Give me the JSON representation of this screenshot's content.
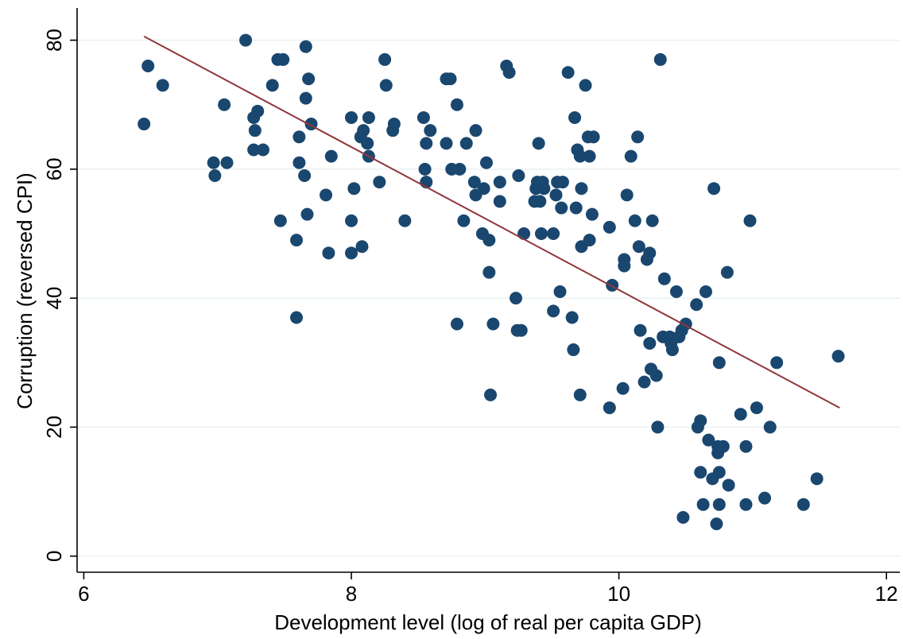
{
  "chart_data": {
    "type": "scatter",
    "xlabel": "Development level (log of real per capita GDP)",
    "ylabel": "Corruption (reversed CPI)",
    "xlim": [
      5.95,
      12.1
    ],
    "ylim": [
      -2.5,
      85
    ],
    "xticks": [
      6,
      8,
      10,
      12
    ],
    "yticks": [
      0,
      20,
      40,
      60,
      80
    ],
    "grid": "horizontal",
    "colors": {
      "points": "#1a476f",
      "fit_line": "#90353b",
      "grid": "#eaf2f3"
    },
    "fit_line": {
      "x": [
        6.45,
        11.65
      ],
      "y": [
        80.6,
        23.0
      ]
    },
    "points": [
      [
        6.45,
        67
      ],
      [
        6.48,
        76
      ],
      [
        6.59,
        73
      ],
      [
        6.97,
        61
      ],
      [
        6.98,
        59
      ],
      [
        7.05,
        70
      ],
      [
        7.07,
        61
      ],
      [
        7.21,
        80
      ],
      [
        7.27,
        68
      ],
      [
        7.28,
        66
      ],
      [
        7.27,
        63
      ],
      [
        7.3,
        69
      ],
      [
        7.34,
        63
      ],
      [
        7.41,
        73
      ],
      [
        7.45,
        77
      ],
      [
        7.49,
        77
      ],
      [
        7.47,
        52
      ],
      [
        7.59,
        49
      ],
      [
        7.59,
        37
      ],
      [
        7.61,
        65
      ],
      [
        7.61,
        61
      ],
      [
        7.65,
        59
      ],
      [
        7.66,
        79
      ],
      [
        7.66,
        71
      ],
      [
        7.68,
        74
      ],
      [
        7.67,
        53
      ],
      [
        7.7,
        67
      ],
      [
        7.81,
        56
      ],
      [
        7.83,
        47
      ],
      [
        7.85,
        62
      ],
      [
        8.0,
        68
      ],
      [
        8.0,
        52
      ],
      [
        8.0,
        47
      ],
      [
        8.02,
        57
      ],
      [
        8.07,
        65
      ],
      [
        8.08,
        48
      ],
      [
        8.09,
        66
      ],
      [
        8.12,
        64
      ],
      [
        8.13,
        62
      ],
      [
        8.13,
        68
      ],
      [
        8.21,
        58
      ],
      [
        8.25,
        77
      ],
      [
        8.26,
        73
      ],
      [
        8.31,
        66
      ],
      [
        8.32,
        67
      ],
      [
        8.4,
        52
      ],
      [
        8.54,
        68
      ],
      [
        8.55,
        60
      ],
      [
        8.56,
        64
      ],
      [
        8.56,
        58
      ],
      [
        8.59,
        66
      ],
      [
        8.71,
        64
      ],
      [
        8.71,
        74
      ],
      [
        8.74,
        74
      ],
      [
        8.75,
        60
      ],
      [
        8.79,
        70
      ],
      [
        8.79,
        36
      ],
      [
        8.81,
        60
      ],
      [
        8.84,
        52
      ],
      [
        8.86,
        64
      ],
      [
        8.92,
        58
      ],
      [
        8.93,
        66
      ],
      [
        8.93,
        56
      ],
      [
        8.99,
        57
      ],
      [
        8.98,
        50
      ],
      [
        9.01,
        61
      ],
      [
        9.03,
        49
      ],
      [
        9.03,
        44
      ],
      [
        9.04,
        25
      ],
      [
        9.06,
        36
      ],
      [
        9.11,
        58
      ],
      [
        9.11,
        55
      ],
      [
        9.16,
        76
      ],
      [
        9.18,
        75
      ],
      [
        9.23,
        40
      ],
      [
        9.24,
        35
      ],
      [
        9.25,
        59
      ],
      [
        9.27,
        35
      ],
      [
        9.29,
        50
      ],
      [
        9.37,
        55
      ],
      [
        9.38,
        57
      ],
      [
        9.39,
        58
      ],
      [
        9.4,
        64
      ],
      [
        9.41,
        55
      ],
      [
        9.42,
        50
      ],
      [
        9.43,
        58
      ],
      [
        9.44,
        57
      ],
      [
        9.51,
        38
      ],
      [
        9.51,
        50
      ],
      [
        9.53,
        56
      ],
      [
        9.54,
        58
      ],
      [
        9.56,
        41
      ],
      [
        9.57,
        54
      ],
      [
        9.58,
        58
      ],
      [
        9.62,
        75
      ],
      [
        9.65,
        37
      ],
      [
        9.66,
        32
      ],
      [
        9.67,
        68
      ],
      [
        9.68,
        54
      ],
      [
        9.69,
        63
      ],
      [
        9.71,
        25
      ],
      [
        9.71,
        62
      ],
      [
        9.72,
        48
      ],
      [
        9.72,
        57
      ],
      [
        9.75,
        73
      ],
      [
        9.77,
        65
      ],
      [
        9.78,
        62
      ],
      [
        9.78,
        49
      ],
      [
        9.8,
        53
      ],
      [
        9.81,
        65
      ],
      [
        9.93,
        23
      ],
      [
        9.93,
        51
      ],
      [
        9.95,
        42
      ],
      [
        10.03,
        26
      ],
      [
        10.04,
        46
      ],
      [
        10.04,
        45
      ],
      [
        10.06,
        56
      ],
      [
        10.09,
        62
      ],
      [
        10.12,
        52
      ],
      [
        10.14,
        65
      ],
      [
        10.15,
        48
      ],
      [
        10.16,
        35
      ],
      [
        10.19,
        27
      ],
      [
        10.21,
        46
      ],
      [
        10.23,
        47
      ],
      [
        10.23,
        33
      ],
      [
        10.24,
        29
      ],
      [
        10.25,
        52
      ],
      [
        10.28,
        28
      ],
      [
        10.29,
        20
      ],
      [
        10.31,
        77
      ],
      [
        10.33,
        34
      ],
      [
        10.34,
        43
      ],
      [
        10.38,
        34
      ],
      [
        10.39,
        33
      ],
      [
        10.4,
        32
      ],
      [
        10.43,
        41
      ],
      [
        10.45,
        34
      ],
      [
        10.47,
        35
      ],
      [
        10.48,
        6
      ],
      [
        10.5,
        36
      ],
      [
        10.58,
        39
      ],
      [
        10.59,
        20
      ],
      [
        10.61,
        21
      ],
      [
        10.61,
        13
      ],
      [
        10.63,
        8
      ],
      [
        10.65,
        41
      ],
      [
        10.67,
        18
      ],
      [
        10.7,
        12
      ],
      [
        10.71,
        57
      ],
      [
        10.73,
        5
      ],
      [
        10.74,
        16
      ],
      [
        10.74,
        17
      ],
      [
        10.75,
        30
      ],
      [
        10.75,
        13
      ],
      [
        10.75,
        8
      ],
      [
        10.78,
        17
      ],
      [
        10.81,
        44
      ],
      [
        10.82,
        11
      ],
      [
        10.91,
        22
      ],
      [
        10.95,
        17
      ],
      [
        10.95,
        8
      ],
      [
        10.98,
        52
      ],
      [
        11.03,
        23
      ],
      [
        11.09,
        9
      ],
      [
        11.13,
        20
      ],
      [
        11.18,
        30
      ],
      [
        11.38,
        8
      ],
      [
        11.48,
        12
      ],
      [
        11.64,
        31
      ]
    ]
  }
}
